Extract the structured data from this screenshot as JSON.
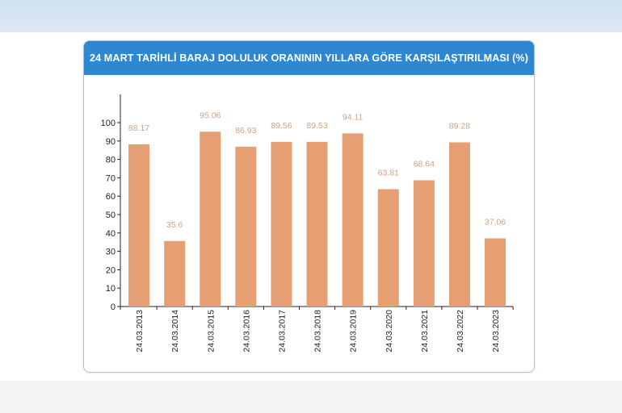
{
  "card": {
    "title": "24 MART TARİHLİ BARAJ DOLULUK ORANININ YILLARA GÖRE KARŞILAŞTIRILMASI (%)"
  },
  "colors": {
    "header": "#2f87d0",
    "bar": "#e69f73",
    "data_label": "#c9a48a"
  },
  "chart_data": {
    "type": "bar",
    "title": "24 MART TARİHLİ BARAJ DOLULUK ORANININ YILLARA GÖRE KARŞILAŞTIRILMASI (%)",
    "categories": [
      "24.03.2013",
      "24.03.2014",
      "24.03.2015",
      "24.03.2016",
      "24.03.2017",
      "24.03.2018",
      "24.03.2019",
      "24.03.2020",
      "24.03.2021",
      "24.03.2022",
      "24.03.2023"
    ],
    "values": [
      88.17,
      35.6,
      95.06,
      86.93,
      89.56,
      89.53,
      94.11,
      63.81,
      68.64,
      89.28,
      37.06
    ],
    "value_labels": [
      "88.17",
      "35.6",
      "95.06",
      "86.93",
      "89.56",
      "89.53",
      "94.11",
      "63.81",
      "68.64",
      "89.28",
      "37.06"
    ],
    "yticks": [
      "0",
      "10",
      "20",
      "30",
      "40",
      "50",
      "60",
      "70",
      "80",
      "90",
      "100"
    ],
    "ylim": [
      0,
      100
    ],
    "xlabel": "",
    "ylabel": "",
    "grid": false,
    "legend": "none"
  }
}
